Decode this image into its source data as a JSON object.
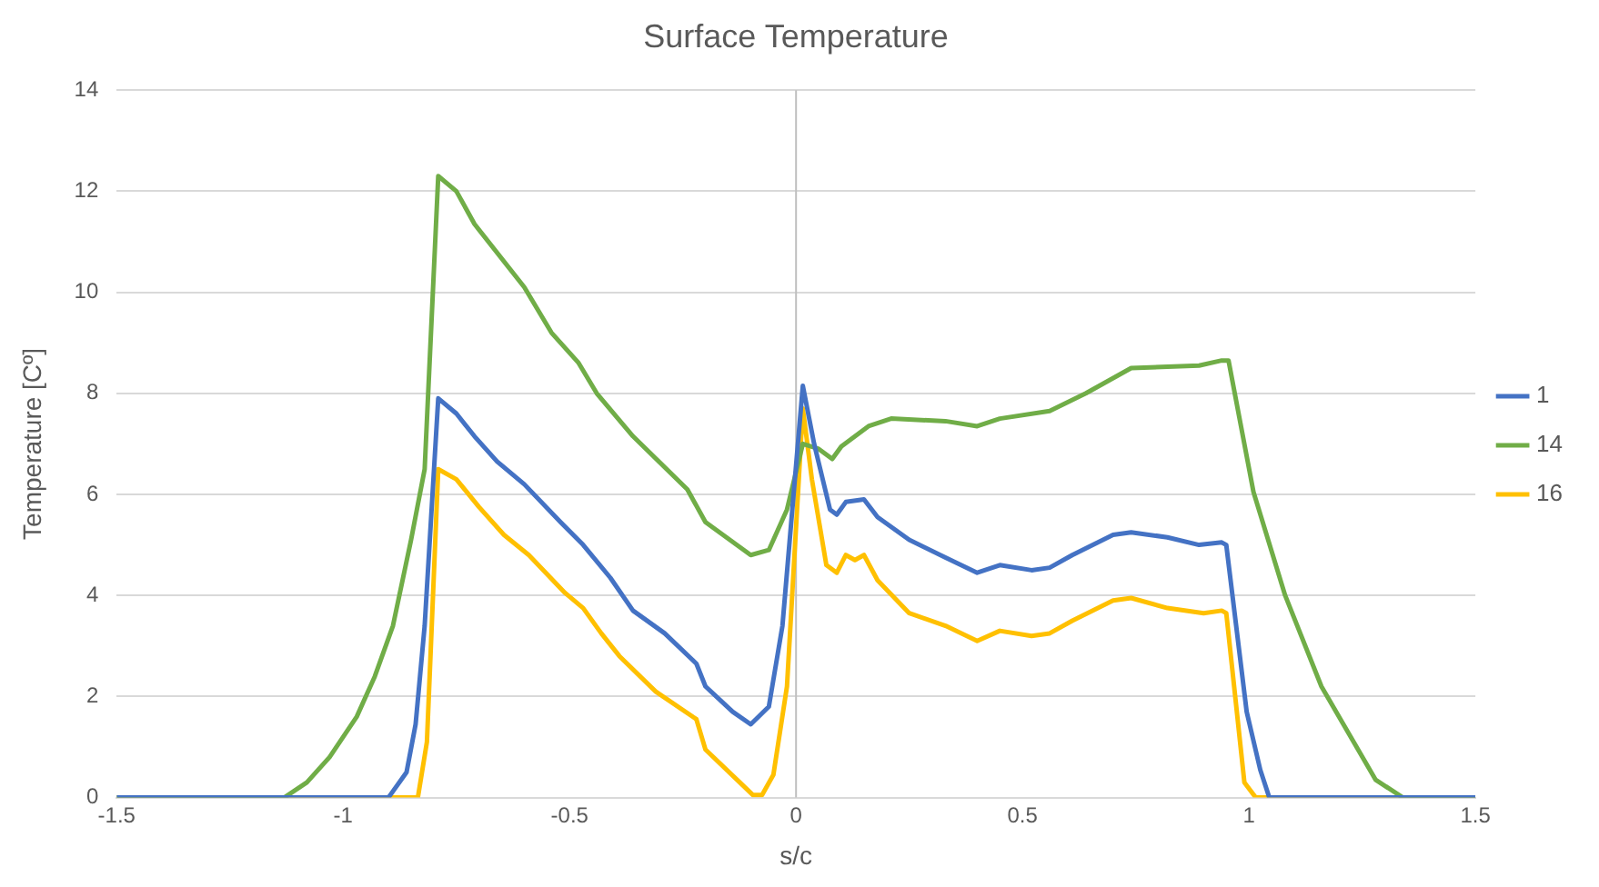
{
  "chart_data": {
    "type": "line",
    "title": "Surface Temperature",
    "xlabel": "s/c",
    "ylabel": "Temperature [Cº]",
    "xlim": [
      -1.5,
      1.5
    ],
    "xticks": [
      {
        "value": -1.5,
        "label": "-1.5"
      },
      {
        "value": -1,
        "label": "-1"
      },
      {
        "value": -0.5,
        "label": "-0.5"
      },
      {
        "value": 0,
        "label": "0"
      },
      {
        "value": 0.5,
        "label": "0.5"
      },
      {
        "value": 1,
        "label": "1"
      },
      {
        "value": 1.5,
        "label": "1.5"
      }
    ],
    "ylim": [
      0,
      14
    ],
    "yticks": [
      0,
      2,
      4,
      6,
      8,
      10,
      12,
      14
    ],
    "grid": "y",
    "legend": "right",
    "marker": "none",
    "line_style": "solid",
    "ref_lines": [
      {
        "axis": "x",
        "value": 0,
        "color": "#bfbfbf"
      }
    ],
    "series": [
      {
        "name": "1",
        "color": "#4472c4",
        "x": [
          -1.5,
          -0.9,
          -0.86,
          -0.84,
          -0.82,
          -0.79,
          -0.75,
          -0.71,
          -0.66,
          -0.6,
          -0.52,
          -0.47,
          -0.41,
          -0.36,
          -0.29,
          -0.22,
          -0.2,
          -0.14,
          -0.1,
          -0.06,
          -0.03,
          0.015,
          0.04,
          0.075,
          0.09,
          0.11,
          0.15,
          0.18,
          0.25,
          0.33,
          0.4,
          0.45,
          0.52,
          0.56,
          0.61,
          0.7,
          0.74,
          0.82,
          0.89,
          0.94,
          0.95,
          0.995,
          1.025,
          1.045,
          1.5
        ],
        "values": [
          0,
          0,
          0.5,
          1.45,
          3.4,
          7.9,
          7.6,
          7.15,
          6.65,
          6.2,
          5.45,
          5,
          4.35,
          3.7,
          3.25,
          2.65,
          2.2,
          1.7,
          1.45,
          1.8,
          3.4,
          8.15,
          7,
          5.7,
          5.6,
          5.85,
          5.9,
          5.55,
          5.1,
          4.75,
          4.45,
          4.6,
          4.5,
          4.55,
          4.8,
          5.2,
          5.25,
          5.15,
          5,
          5.05,
          5,
          1.7,
          0.55,
          0,
          0
        ]
      },
      {
        "name": "14",
        "color": "#70ad47",
        "x": [
          -1.5,
          -1.13,
          -1.08,
          -1.03,
          -0.97,
          -0.93,
          -0.89,
          -0.85,
          -0.82,
          -0.79,
          -0.75,
          -0.71,
          -0.6,
          -0.54,
          -0.48,
          -0.44,
          -0.36,
          -0.24,
          -0.2,
          -0.1,
          -0.06,
          -0.02,
          0.015,
          0.05,
          0.08,
          0.1,
          0.16,
          0.21,
          0.33,
          0.4,
          0.45,
          0.56,
          0.64,
          0.74,
          0.89,
          0.94,
          0.955,
          1.01,
          1.08,
          1.16,
          1.28,
          1.34,
          1.5
        ],
        "values": [
          0,
          0,
          0.3,
          0.8,
          1.6,
          2.4,
          3.4,
          5.1,
          6.5,
          12.3,
          12,
          11.35,
          10.1,
          9.2,
          8.6,
          8,
          7.15,
          6.1,
          5.45,
          4.8,
          4.9,
          5.7,
          7,
          6.9,
          6.7,
          6.95,
          7.35,
          7.5,
          7.45,
          7.35,
          7.5,
          7.65,
          8,
          8.5,
          8.55,
          8.65,
          8.65,
          6.05,
          4,
          2.2,
          0.35,
          0,
          0
        ]
      },
      {
        "name": "16",
        "color": "#ffc000",
        "x": [
          -1.5,
          -0.835,
          -0.815,
          -0.79,
          -0.75,
          -0.7,
          -0.645,
          -0.59,
          -0.51,
          -0.47,
          -0.43,
          -0.39,
          -0.31,
          -0.22,
          -0.2,
          -0.13,
          -0.095,
          -0.075,
          -0.05,
          -0.02,
          0.015,
          0.035,
          0.067,
          0.09,
          0.11,
          0.13,
          0.15,
          0.18,
          0.25,
          0.33,
          0.4,
          0.45,
          0.52,
          0.56,
          0.61,
          0.7,
          0.74,
          0.82,
          0.9,
          0.94,
          0.95,
          0.99,
          1.015,
          1.5
        ],
        "values": [
          0,
          0,
          1.1,
          6.5,
          6.3,
          5.75,
          5.2,
          4.8,
          4.05,
          3.75,
          3.25,
          2.8,
          2.1,
          1.55,
          0.95,
          0.35,
          0.05,
          0.05,
          0.45,
          2.2,
          7.7,
          6.3,
          4.6,
          4.45,
          4.8,
          4.7,
          4.8,
          4.3,
          3.65,
          3.4,
          3.1,
          3.3,
          3.2,
          3.25,
          3.5,
          3.9,
          3.95,
          3.75,
          3.65,
          3.7,
          3.65,
          0.3,
          0,
          0
        ]
      }
    ]
  }
}
